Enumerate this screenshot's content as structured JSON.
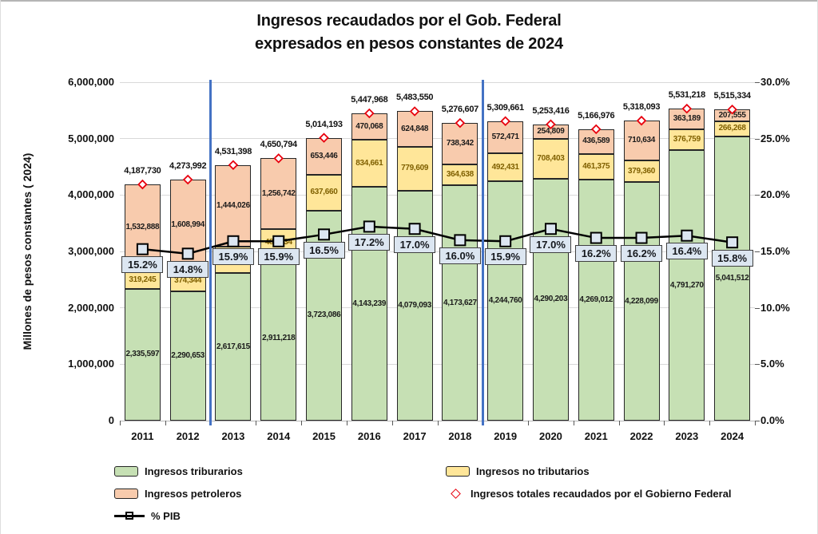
{
  "title": {
    "line1": "Ingresos recaudados por el Gob. Federal",
    "line2": "expresados en pesos constantes de 2024"
  },
  "chart_data": {
    "type": "bar",
    "subtype": "stacked-bars-with-line-and-point-overlay",
    "title": "Ingresos recaudados por el Gob. Federal expresados en pesos constantes de 2024",
    "categories": [
      "2011",
      "2012",
      "2013",
      "2014",
      "2015",
      "2016",
      "2017",
      "2018",
      "2019",
      "2020",
      "2021",
      "2022",
      "2023",
      "2024"
    ],
    "series": [
      {
        "name": "Ingresos triburarios",
        "role": "stacked-bar",
        "color": "#C6E0B4",
        "label_color": "#1A1A1A",
        "values": [
          2335597,
          2290653,
          2617615,
          2911218,
          3723086,
          4143239,
          4079093,
          4173627,
          4244760,
          4290203,
          4269012,
          4228099,
          4791270,
          5041512
        ],
        "labels": [
          "2,335,597",
          "2,290,653",
          "2,617,615",
          "2,911,218",
          "3,723,086",
          "4,143,239",
          "4,079,093",
          "4,173,627",
          "4,244,760",
          "4,290,203",
          "4,269,012",
          "4,228,099",
          "4,791,270",
          "5,041,512"
        ]
      },
      {
        "name": "Ingresos no tributarios",
        "role": "stacked-bar",
        "color": "#FFE699",
        "label_color": "#7F6000",
        "values": [
          319245,
          374344,
          469757,
          482834,
          637660,
          834661,
          779609,
          364638,
          492431,
          708403,
          461375,
          379360,
          376759,
          266268
        ],
        "labels": [
          "319,245",
          "374,344",
          "",
          "482,834",
          "637,660",
          "834,661",
          "779,609",
          "364,638",
          "492,431",
          "708,403",
          "461,375",
          "379,360",
          "376,759",
          "266,268"
        ]
      },
      {
        "name": "Ingresos petroleros",
        "role": "stacked-bar",
        "color": "#F8CBAD",
        "label_color": "#1A1A1A",
        "values": [
          1532888,
          1608994,
          1444026,
          1256742,
          653446,
          470068,
          624848,
          738342,
          572471,
          254809,
          436589,
          710634,
          363189,
          207555
        ],
        "labels": [
          "1,532,888",
          "1,608,994",
          "1,444,026",
          "1,256,742",
          "653,446",
          "470,068",
          "624,848",
          "738,342",
          "572,471",
          "254,809",
          "436,589",
          "710,634",
          "363,189",
          "207,555"
        ]
      },
      {
        "name": "Ingresos totales recaudados por el Gobierno Federal",
        "role": "point-markers",
        "axis": "left",
        "marker": "diamond",
        "marker_color": "#E8000D",
        "marker_fill": "#FFFFFF",
        "values": [
          4187730,
          4273992,
          4531398,
          4650794,
          5014193,
          5447968,
          5483550,
          5276607,
          5309661,
          5253416,
          5166976,
          5318093,
          5531218,
          5515334
        ],
        "labels": [
          "4,187,730",
          "4,273,992",
          "4,531,398",
          "4,650,794",
          "5,014,193",
          "5,447,968",
          "5,483,550",
          "5,276,607",
          "5,309,661",
          "5,253,416",
          "5,166,976",
          "5,318,093",
          "5,531,218",
          "5,515,334"
        ]
      },
      {
        "name": "% PIB",
        "role": "line",
        "axis": "right",
        "line_color": "#000000",
        "marker": "square",
        "marker_fill": "#DCE6F1",
        "values": [
          15.2,
          14.8,
          15.9,
          15.9,
          16.5,
          17.2,
          17.0,
          16.0,
          15.9,
          17.0,
          16.2,
          16.2,
          16.4,
          15.8
        ],
        "labels": [
          "15.2%",
          "14.8%",
          "15.9%",
          "15.9%",
          "16.5%",
          "17.2%",
          "17.0%",
          "16.0%",
          "15.9%",
          "17.0%",
          "16.2%",
          "16.2%",
          "16.4%",
          "15.8%"
        ]
      }
    ],
    "axes": {
      "left": {
        "title": "Millones de pesos constantes ( 2024)",
        "min": 0,
        "max": 6000000,
        "tick_values": [
          0,
          1000000,
          2000000,
          3000000,
          4000000,
          5000000,
          6000000
        ],
        "tick_labels": [
          "0",
          "1,000,000",
          "2,000,000",
          "3,000,000",
          "4,000,000",
          "5,000,000",
          "6,000,000"
        ]
      },
      "right": {
        "min": 0,
        "max": 30,
        "tick_values": [
          0,
          5,
          10,
          15,
          20,
          25,
          30
        ],
        "tick_labels": [
          "0.0%",
          "5.0%",
          "10.0%",
          "15.0%",
          "20.0%",
          "25.0%",
          "30.0%"
        ]
      },
      "x": {
        "tick_labels": [
          "2011",
          "2012",
          "2013",
          "2014",
          "2015",
          "2016",
          "2017",
          "2018",
          "2019",
          "2020",
          "2021",
          "2022",
          "2023",
          "2024"
        ]
      }
    },
    "separators": {
      "after_categories": [
        "2012",
        "2018"
      ],
      "color": "#4472C4"
    },
    "style": {
      "bar_border_color": "#262626",
      "gridline_color": "#D9D9D9",
      "pib_box_bg": "#DCE6F1",
      "pib_box_border": "#404040"
    },
    "grid": true,
    "legend_position": "bottom"
  },
  "legend": {
    "left_column": [
      {
        "label": "Ingresos triburarios",
        "swatch": "bar",
        "color": "#C6E0B4"
      },
      {
        "label": "Ingresos petroleros",
        "swatch": "bar",
        "color": "#F8CBAD"
      },
      {
        "label": "% PIB",
        "swatch": "line-square",
        "color": "#000000"
      }
    ],
    "right_column": [
      {
        "label": "Ingresos no tributarios",
        "swatch": "bar",
        "color": "#FFE699"
      },
      {
        "label": "Ingresos totales recaudados por el Gobierno Federal",
        "swatch": "diamond",
        "color": "#E8000D"
      }
    ]
  }
}
